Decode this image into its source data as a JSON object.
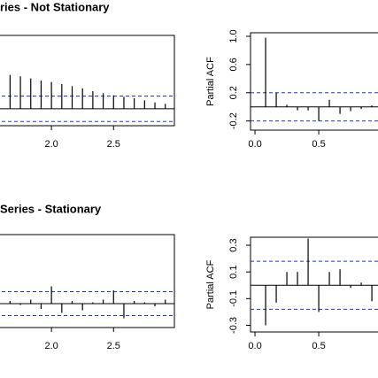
{
  "chart_data": [
    {
      "type": "stem",
      "title": "ries - Not Stationary",
      "x": [
        1.6667,
        1.75,
        1.8333,
        1.9167,
        2,
        2.0833,
        2.1667,
        2.25,
        2.3333,
        2.4167,
        2.5,
        2.5833,
        2.6667,
        2.75,
        2.8333,
        2.9167
      ],
      "values": [
        0.48,
        0.46,
        0.43,
        0.4,
        0.38,
        0.35,
        0.32,
        0.29,
        0.25,
        0.22,
        0.19,
        0.17,
        0.15,
        0.12,
        0.09,
        0.07
      ],
      "xlim": [
        1.55,
        2.99
      ],
      "xticks": [
        {
          "value": 2,
          "label": "2.0"
        },
        2.5
      ],
      "ylim": [
        -0.24,
        1.04
      ],
      "conf_limits": [
        0.18,
        -0.18
      ],
      "color": "#000000",
      "conf_color": "#2233cc"
    },
    {
      "type": "stem",
      "ylabel": "Partial ACF",
      "x": [
        0.0833,
        0.1667,
        0.25,
        0.3333,
        0.4167,
        0.5,
        0.5833,
        0.6667,
        0.75,
        0.8333,
        0.9167
      ],
      "values": [
        0.98,
        0.2,
        0.03,
        -0.05,
        -0.05,
        -0.2,
        0.1,
        -0.1,
        -0.06,
        -0.03,
        0.02
      ],
      "xlim": [
        -0.035,
        1.055
      ],
      "xticks": [
        {
          "value": 0,
          "label": "0.0"
        },
        0.5
      ],
      "ylim": [
        -0.33,
        1.05
      ],
      "yticks": [
        -0.2,
        0.2,
        0.6,
        {
          "value": 1,
          "label": "1.0"
        }
      ],
      "conf_limits": [
        0.2,
        -0.2
      ],
      "color": "#000000",
      "conf_color": "#2233cc"
    },
    {
      "type": "stem",
      "title": "Series - Stationary",
      "x": [
        1.6667,
        1.75,
        1.8333,
        1.9167,
        2,
        2.0833,
        2.1667,
        2.25,
        2.3333,
        2.4167,
        2.5,
        2.5833,
        2.6667,
        2.75,
        2.8333,
        2.9167
      ],
      "values": [
        0.02,
        -0.01,
        0.03,
        -0.04,
        0.13,
        -0.07,
        0.02,
        -0.05,
        0.01,
        0.03,
        0.1,
        -0.11,
        0.02,
        0.01,
        -0.02,
        0.03
      ],
      "xlim": [
        1.55,
        2.99
      ],
      "xticks": [
        {
          "value": 2,
          "label": "2.0"
        },
        2.5
      ],
      "ylim": [
        -0.18,
        0.52
      ],
      "conf_limits": [
        0.09,
        -0.09
      ],
      "color": "#000000",
      "conf_color": "#2233cc"
    },
    {
      "type": "stem",
      "ylabel": "Partial ACF",
      "x": [
        0.0833,
        0.1667,
        0.25,
        0.3333,
        0.4167,
        0.5,
        0.5833,
        0.6667,
        0.75,
        0.8333,
        0.9167
      ],
      "values": [
        -0.3,
        -0.13,
        0.1,
        0.1,
        0.35,
        -0.2,
        0.1,
        0.12,
        -0.02,
        0.02,
        -0.12
      ],
      "xlim": [
        -0.035,
        1.055
      ],
      "xticks": [
        {
          "value": 0,
          "label": "0.0"
        },
        0.5
      ],
      "ylim": [
        -0.35,
        0.36
      ],
      "yticks": [
        -0.3,
        -0.1,
        0.1,
        0.3
      ],
      "conf_limits": [
        0.18,
        -0.18
      ],
      "color": "#000000",
      "conf_color": "#2233cc"
    }
  ]
}
